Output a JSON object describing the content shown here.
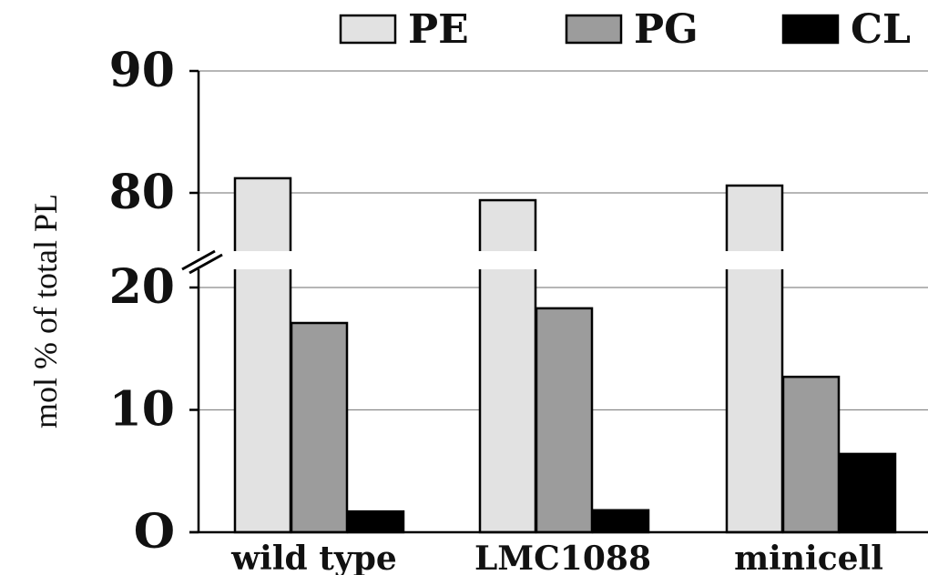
{
  "chart_data": {
    "type": "bar",
    "ylabel": "mol % of total PL",
    "categories": [
      "wild type",
      "LMC1088",
      "minicell"
    ],
    "series": [
      {
        "name": "PE",
        "color": "#e2e2e2",
        "values": [
          81.2,
          79.4,
          80.6
        ]
      },
      {
        "name": "PG",
        "color": "#9c9c9c",
        "values": [
          17.1,
          18.3,
          12.7
        ]
      },
      {
        "name": "CL",
        "color": "#000000",
        "values": [
          1.7,
          1.8,
          6.4
        ]
      }
    ],
    "y_axis": {
      "broken": true,
      "lower_range": [
        0,
        20
      ],
      "upper_range": [
        75,
        90
      ],
      "ticks": [
        0,
        10,
        20,
        80,
        90
      ],
      "tick_labels": [
        "O",
        "10",
        "20",
        "80",
        "90"
      ]
    },
    "grid": true,
    "legend_position": "top"
  }
}
